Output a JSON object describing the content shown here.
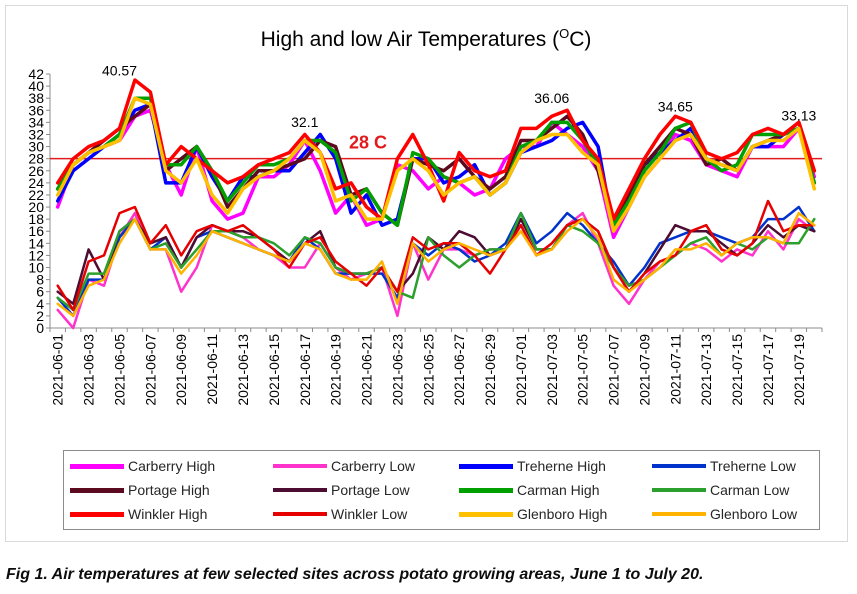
{
  "caption": "Fig 1. Air temperatures at few selected sites across potato growing areas, June 1 to July 20.",
  "chart_data": {
    "type": "line",
    "title": "High and low Air Temperatures (°C)",
    "title_main": "High and low Air Temperatures (",
    "title_superscript": "O",
    "title_tail": "C)",
    "xlabel": "",
    "ylabel": "",
    "ylim": [
      0,
      42
    ],
    "yticks": [
      0,
      2,
      4,
      6,
      8,
      10,
      12,
      14,
      16,
      18,
      20,
      22,
      24,
      26,
      28,
      30,
      32,
      34,
      36,
      38,
      40,
      42
    ],
    "x": [
      "2021-06-01",
      "2021-06-02",
      "2021-06-03",
      "2021-06-04",
      "2021-06-05",
      "2021-06-06",
      "2021-06-07",
      "2021-06-08",
      "2021-06-09",
      "2021-06-10",
      "2021-06-11",
      "2021-06-12",
      "2021-06-13",
      "2021-06-14",
      "2021-06-15",
      "2021-06-16",
      "2021-06-17",
      "2021-06-18",
      "2021-06-19",
      "2021-06-20",
      "2021-06-21",
      "2021-06-22",
      "2021-06-23",
      "2021-06-24",
      "2021-06-25",
      "2021-06-26",
      "2021-06-27",
      "2021-06-28",
      "2021-06-29",
      "2021-06-30",
      "2021-07-01",
      "2021-07-02",
      "2021-07-03",
      "2021-07-04",
      "2021-07-05",
      "2021-07-06",
      "2021-07-07",
      "2021-07-08",
      "2021-07-09",
      "2021-07-10",
      "2021-07-11",
      "2021-07-12",
      "2021-07-13",
      "2021-07-14",
      "2021-07-15",
      "2021-07-16",
      "2021-07-17",
      "2021-07-18",
      "2021-07-19",
      "2021-07-20"
    ],
    "xtick_labels": [
      "2021-06-01",
      "2021-06-03",
      "2021-06-05",
      "2021-06-07",
      "2021-06-09",
      "2021-06-11",
      "2021-06-13",
      "2021-06-15",
      "2021-06-17",
      "2021-06-19",
      "2021-06-21",
      "2021-06-23",
      "2021-06-25",
      "2021-06-27",
      "2021-06-29",
      "2021-07-01",
      "2021-07-03",
      "2021-07-05",
      "2021-07-07",
      "2021-07-09",
      "2021-07-11",
      "2021-07-13",
      "2021-07-15",
      "2021-07-17",
      "2021-07-19"
    ],
    "reference_line": {
      "value": 28,
      "label": "28 C",
      "color": "#e31a1c"
    },
    "annotations": [
      {
        "x": "2021-06-05",
        "y": 40.57,
        "text": "40.57"
      },
      {
        "x": "2021-06-17",
        "y": 32.1,
        "text": "32.1"
      },
      {
        "x": "2021-07-03",
        "y": 36.06,
        "text": "36.06"
      },
      {
        "x": "2021-07-11",
        "y": 34.65,
        "text": "34.65"
      },
      {
        "x": "2021-07-19",
        "y": 33.13,
        "text": "33.13"
      }
    ],
    "grid": false,
    "legend_position": "bottom",
    "series": [
      {
        "name": "Carberry High",
        "color": "#ff00ff",
        "width": 3.5,
        "values": [
          20,
          27,
          29,
          30,
          31,
          35,
          36,
          27,
          22,
          30,
          21,
          18,
          19,
          25,
          25,
          27,
          31,
          26,
          19,
          22,
          17,
          18,
          27,
          26,
          23,
          25,
          24,
          22,
          23,
          28,
          30,
          30,
          34,
          32,
          30,
          26,
          15,
          20,
          25,
          28,
          32,
          31,
          27,
          26,
          25,
          30,
          30,
          30,
          33,
          25
        ]
      },
      {
        "name": "Carberry Low",
        "color": "#ff33cc",
        "width": 2.5,
        "values": [
          3,
          0,
          8,
          7,
          15,
          19,
          13,
          13,
          6,
          10,
          17,
          16,
          15,
          13,
          12,
          10,
          10,
          14,
          10,
          8,
          9,
          10,
          2,
          14,
          8,
          13,
          13,
          12,
          13,
          13,
          17,
          12,
          14,
          17,
          19,
          14,
          7,
          4,
          8,
          11,
          12,
          14,
          13,
          11,
          13,
          12,
          16,
          13,
          18,
          16
        ]
      },
      {
        "name": "Treherne High",
        "color": "#0000ff",
        "width": 3.5,
        "values": [
          21,
          26,
          28,
          30,
          32,
          36,
          37,
          24,
          24,
          30,
          25,
          21,
          25,
          25,
          26,
          26,
          29,
          32,
          28,
          19,
          22,
          17,
          18,
          28,
          28,
          24,
          25,
          27,
          22,
          24,
          29,
          30,
          31,
          33,
          34,
          30,
          16,
          21,
          27,
          29,
          31,
          33,
          28,
          27,
          26,
          30,
          30,
          32,
          33,
          24
        ]
      },
      {
        "name": "Treherne Low",
        "color": "#0033cc",
        "width": 2.5,
        "values": [
          5,
          2,
          8,
          8,
          15,
          18,
          13,
          15,
          10,
          15,
          16,
          15,
          14,
          13,
          12,
          11,
          15,
          13,
          9,
          9,
          9,
          9,
          5,
          14,
          12,
          14,
          13,
          11,
          12,
          14,
          19,
          14,
          16,
          19,
          17,
          14,
          11,
          7,
          10,
          14,
          15,
          16,
          16,
          15,
          14,
          15,
          18,
          18,
          20,
          16
        ]
      },
      {
        "name": "Portage High",
        "color": "#5c0a1f",
        "width": 3.5,
        "values": [
          23,
          27,
          29,
          31,
          33,
          35,
          37,
          26,
          28,
          30,
          26,
          20,
          23,
          26,
          26,
          27,
          28,
          31,
          30,
          22,
          23,
          19,
          17,
          28,
          27,
          26,
          28,
          25,
          23,
          25,
          31,
          31,
          33,
          35,
          32,
          26,
          17,
          22,
          27,
          30,
          33,
          32,
          27,
          28,
          26,
          30,
          31,
          32,
          34,
          26
        ]
      },
      {
        "name": "Portage Low",
        "color": "#4d0d33",
        "width": 2.5,
        "values": [
          6,
          4,
          13,
          8,
          16,
          18,
          14,
          15,
          10,
          15,
          17,
          16,
          16,
          15,
          13,
          11,
          14,
          16,
          10,
          9,
          9,
          10,
          6,
          9,
          15,
          13,
          16,
          15,
          12,
          13,
          18,
          13,
          13,
          17,
          18,
          16,
          10,
          6,
          9,
          13,
          17,
          16,
          16,
          14,
          12,
          14,
          17,
          15,
          17,
          16
        ]
      },
      {
        "name": "Carman High",
        "color": "#00a000",
        "width": 3.5,
        "values": [
          23,
          27,
          29,
          30,
          32,
          38,
          38,
          27,
          27,
          30,
          26,
          21,
          24,
          27,
          27,
          28,
          31,
          31,
          29,
          21,
          23,
          19,
          17,
          29,
          28,
          25,
          24,
          25,
          22,
          24,
          30,
          31,
          34,
          34,
          31,
          27,
          17,
          21,
          26,
          29,
          33,
          34,
          28,
          26,
          27,
          32,
          32,
          32,
          33,
          24
        ]
      },
      {
        "name": "Carman Low",
        "color": "#2ca02c",
        "width": 2.5,
        "values": [
          5,
          3,
          9,
          9,
          16,
          18,
          13,
          14,
          10,
          13,
          16,
          16,
          15,
          15,
          14,
          12,
          15,
          14,
          10,
          9,
          9,
          10,
          6,
          5,
          15,
          12,
          10,
          12,
          13,
          13,
          19,
          13,
          13,
          17,
          16,
          14,
          10,
          7,
          8,
          10,
          12,
          14,
          15,
          12,
          14,
          13,
          15,
          14,
          14,
          18
        ]
      },
      {
        "name": "Winkler High",
        "color": "#ff0000",
        "width": 3.5,
        "values": [
          24,
          28,
          30,
          31,
          33,
          41,
          39,
          27,
          30,
          28,
          26,
          24,
          25,
          27,
          28,
          29,
          32,
          29,
          23,
          24,
          20,
          18,
          28,
          32,
          27,
          21,
          29,
          26,
          25,
          26,
          33,
          33,
          35,
          36,
          31,
          28,
          18,
          23,
          28,
          32,
          35,
          34,
          29,
          28,
          29,
          32,
          33,
          32,
          34,
          26
        ]
      },
      {
        "name": "Winkler Low",
        "color": "#e60000",
        "width": 2.5,
        "values": [
          7,
          3,
          11,
          12,
          19,
          20,
          14,
          17,
          12,
          16,
          17,
          16,
          17,
          15,
          13,
          10,
          14,
          15,
          11,
          9,
          7,
          10,
          6,
          15,
          13,
          14,
          14,
          12,
          9,
          13,
          17,
          12,
          14,
          17,
          18,
          16,
          10,
          6,
          9,
          11,
          12,
          16,
          17,
          13,
          12,
          14,
          21,
          16,
          17,
          17
        ]
      },
      {
        "name": "Glenboro High",
        "color": "#ffc000",
        "width": 3.5,
        "values": [
          22,
          27,
          29,
          30,
          31,
          38,
          37,
          26,
          24,
          28,
          22,
          19,
          23,
          25,
          26,
          28,
          31,
          29,
          21,
          22,
          18,
          18,
          26,
          28,
          26,
          22,
          24,
          25,
          22,
          24,
          29,
          31,
          32,
          32,
          29,
          27,
          16,
          20,
          25,
          28,
          31,
          32,
          28,
          27,
          26,
          30,
          31,
          31,
          33,
          23
        ]
      },
      {
        "name": "Glenboro Low",
        "color": "#ffb300",
        "width": 2.5,
        "values": [
          4,
          2,
          7,
          8,
          14,
          18,
          13,
          13,
          9,
          12,
          16,
          15,
          14,
          13,
          12,
          11,
          14,
          13,
          9,
          8,
          8,
          11,
          4,
          14,
          11,
          13,
          14,
          13,
          12,
          13,
          16,
          12,
          13,
          16,
          18,
          15,
          8,
          6,
          8,
          10,
          13,
          13,
          14,
          12,
          14,
          15,
          15,
          14,
          19,
          17
        ]
      }
    ]
  }
}
